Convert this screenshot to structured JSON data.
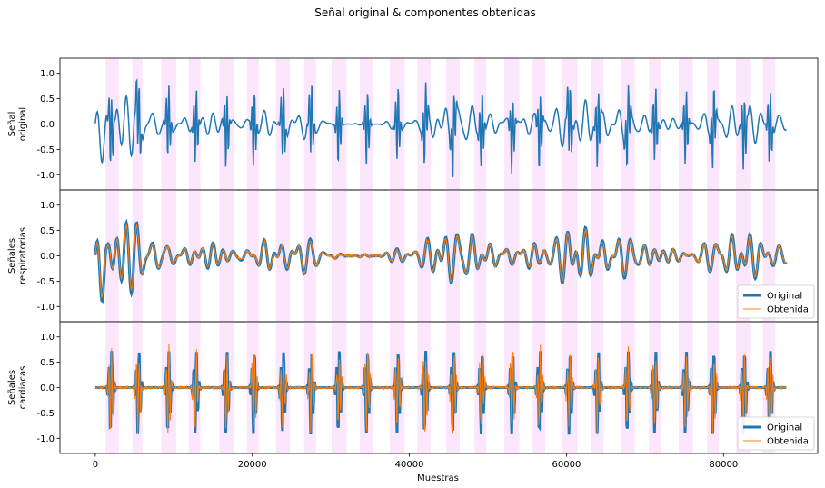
{
  "chart_data": {
    "type": "line",
    "title": "Señal original & componentes obtenidas",
    "xlabel": "Muestras",
    "xlim": [
      -4500,
      92000
    ],
    "xticks": [
      0,
      20000,
      40000,
      60000,
      80000
    ],
    "n_samples": 88000,
    "yticks": [
      -1.0,
      -0.5,
      0.0,
      0.5,
      1.0
    ],
    "colors": {
      "original": "#1f77b4",
      "obtenida": "#ff7f0e",
      "band": "#fbe6fb"
    },
    "shaded_bands": [
      [
        1300,
        3000
      ],
      [
        4700,
        6000
      ],
      [
        8400,
        10300
      ],
      [
        11900,
        13400
      ],
      [
        15800,
        17700
      ],
      [
        19300,
        20800
      ],
      [
        23000,
        24800
      ],
      [
        26600,
        28100
      ],
      [
        30100,
        32000
      ],
      [
        33700,
        35300
      ],
      [
        37500,
        39400
      ],
      [
        41000,
        42700
      ],
      [
        44700,
        46400
      ],
      [
        48300,
        49800
      ],
      [
        52100,
        54000
      ],
      [
        55700,
        57300
      ],
      [
        59500,
        61400
      ],
      [
        63100,
        64700
      ],
      [
        66900,
        68700
      ],
      [
        70500,
        72000
      ],
      [
        74300,
        76100
      ],
      [
        77900,
        79400
      ],
      [
        81600,
        83500
      ],
      [
        85000,
        86600
      ]
    ],
    "heart_beats": [
      2000,
      5500,
      9300,
      12800,
      16700,
      20200,
      23900,
      27500,
      31000,
      34600,
      38500,
      42000,
      45600,
      49200,
      53100,
      56600,
      60400,
      64000,
      67800,
      71300,
      75200,
      78700,
      82600,
      85900
    ],
    "panels": [
      {
        "ylabel": [
          "Señal",
          "original"
        ],
        "ylim": [
          -1.3,
          1.3
        ],
        "series": [
          {
            "values": "signal = respiratory + cardiac (approx.), range -1.2 to 1.15"
          }
        ],
        "legend": null
      },
      {
        "ylabel": [
          "Señales",
          "respiratorias"
        ],
        "ylim": [
          -1.3,
          1.3
        ],
        "series": [
          {
            "name": "Original",
            "values": "respiratory component, oscillating about 0 within -0.6 to 0.83"
          },
          {
            "name": "Obtenida",
            "values": "estimated respiratory component closely tracking the original"
          }
        ],
        "legend": "lower right"
      },
      {
        "ylabel": [
          "Señales",
          "cardiacas"
        ],
        "ylim": [
          -1.3,
          1.3
        ],
        "series": [
          {
            "name": "Original",
            "values": "cardiac component: bursts near 0.75 / -1.0 at each heart beat, flat 0 between"
          },
          {
            "name": "Obtenida",
            "values": "estimated cardiac component with bursts plus small noise"
          }
        ],
        "legend": "lower right"
      }
    ],
    "legend_labels": [
      "Original",
      "Obtenida"
    ]
  }
}
